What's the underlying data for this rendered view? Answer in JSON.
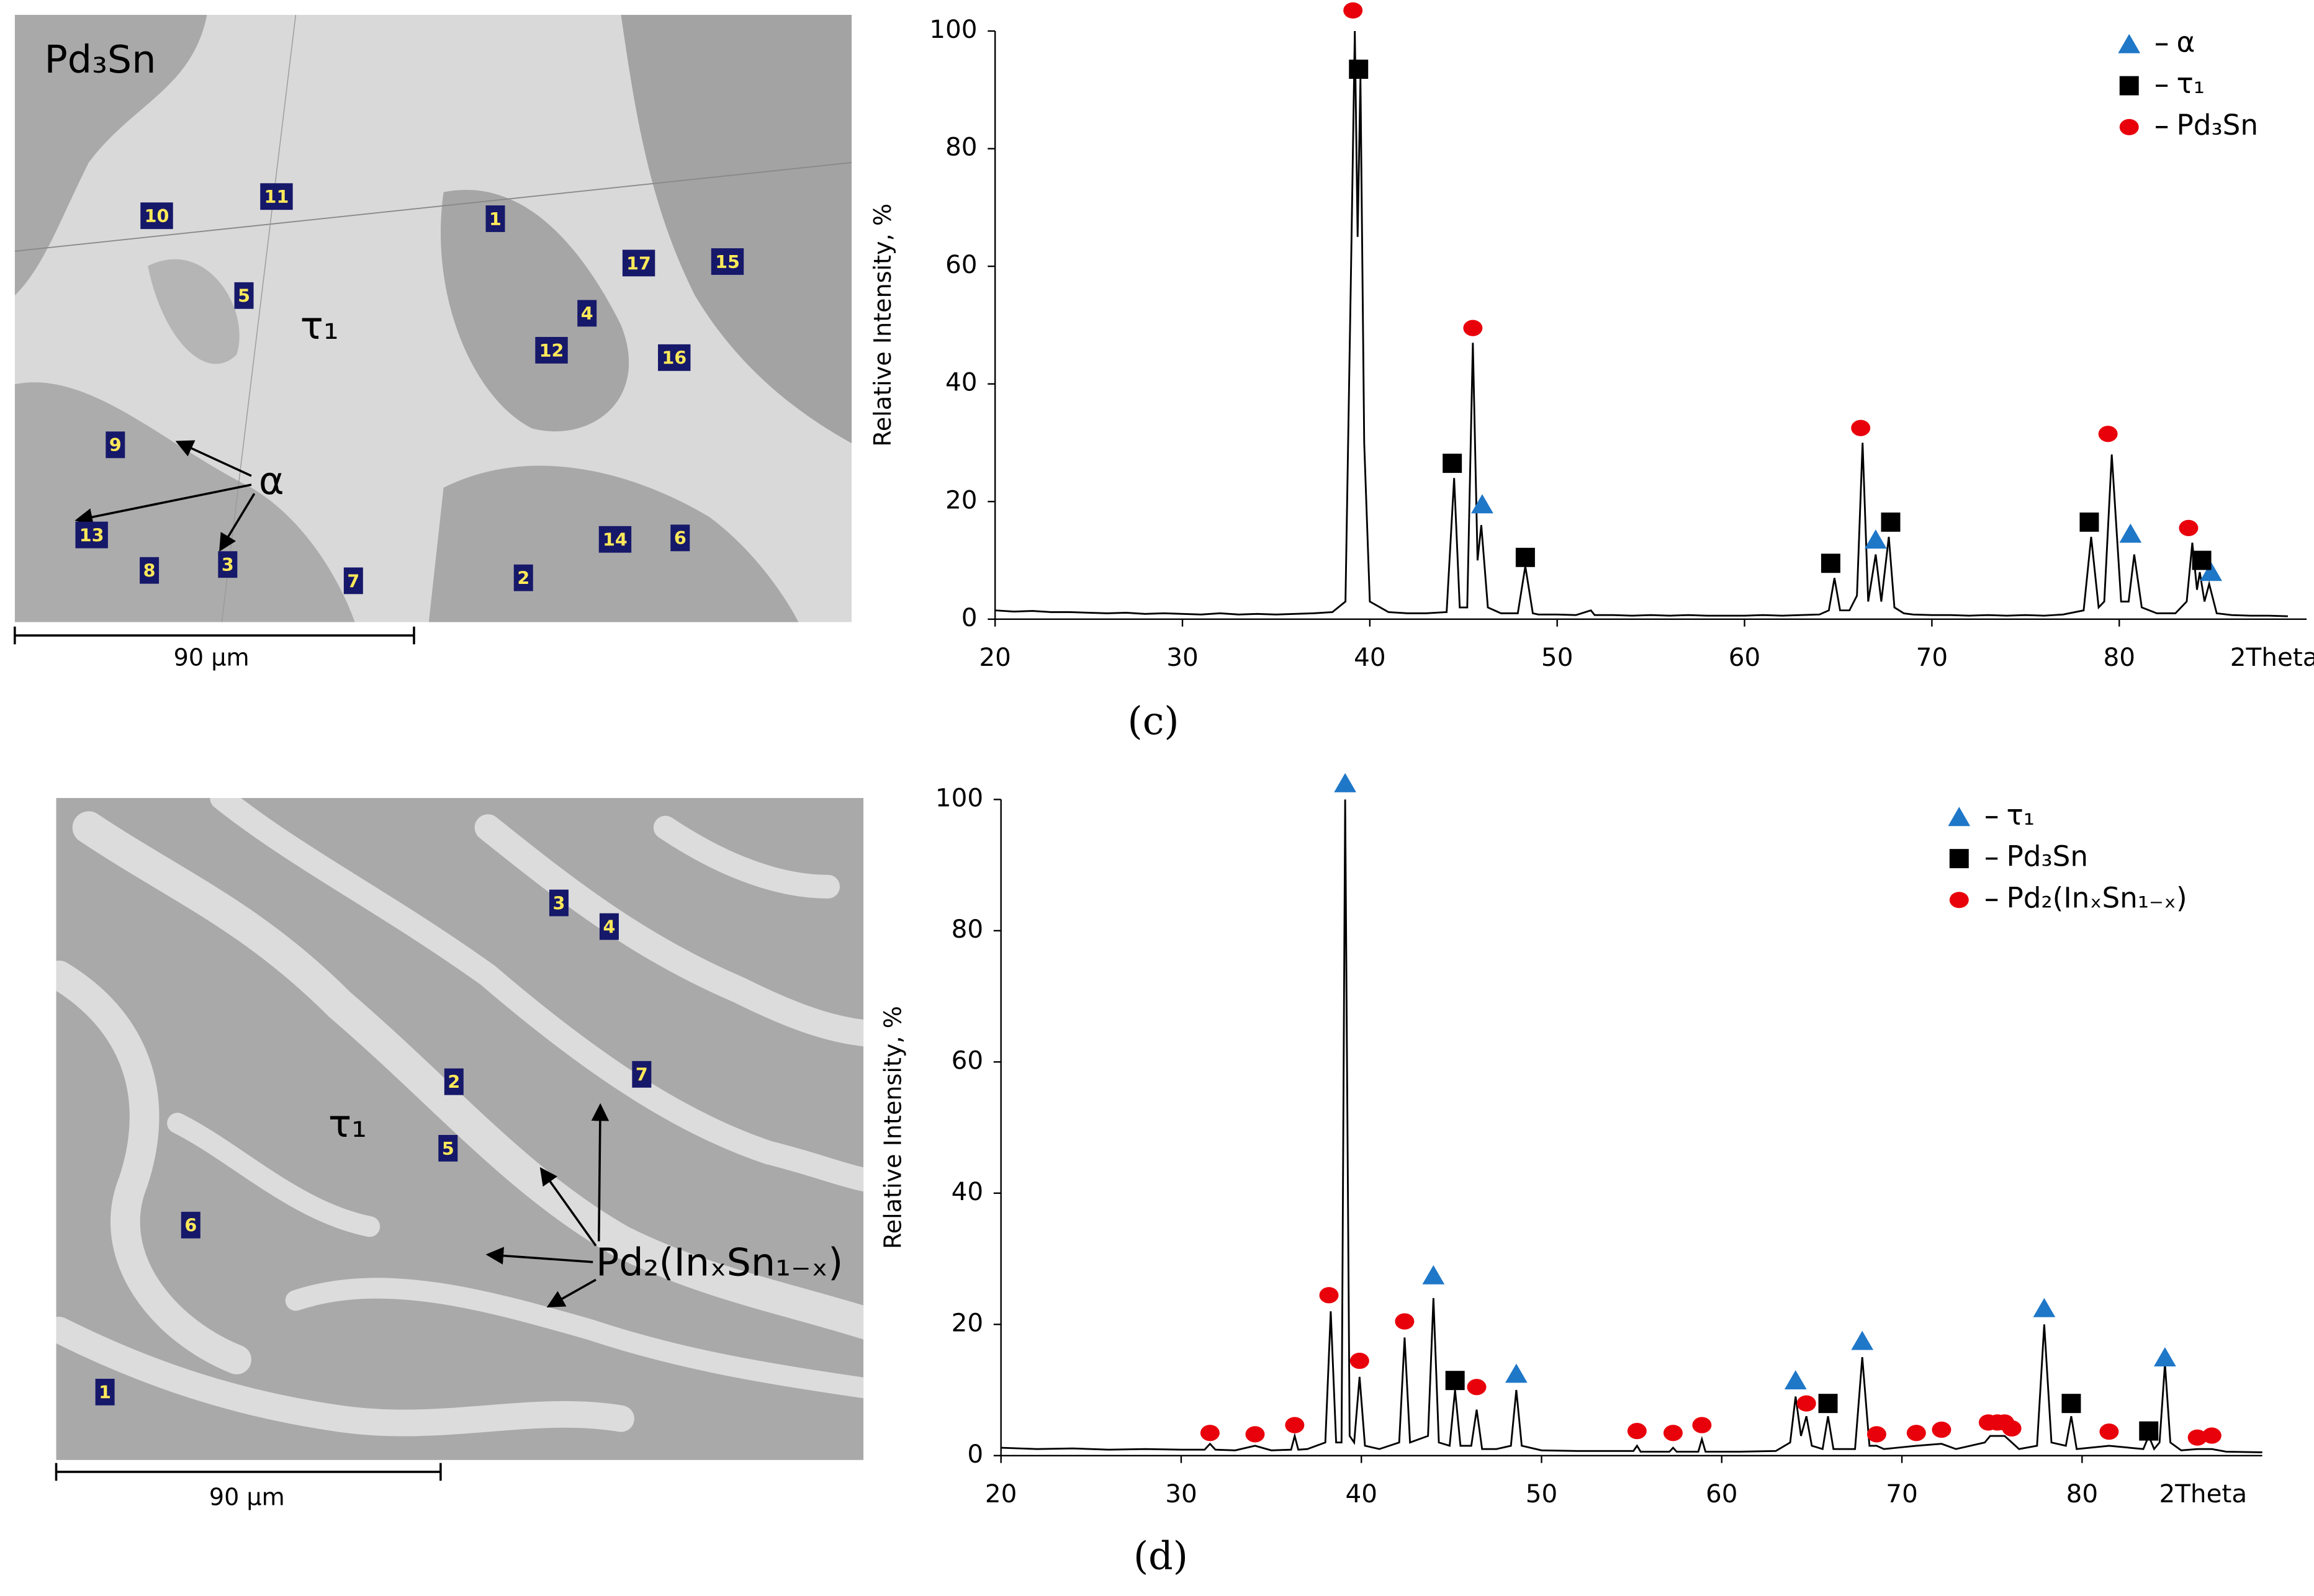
{
  "micrographs": [
    {
      "label": "Pd₃Sn",
      "phase_labels": [
        "τ₁",
        "α"
      ],
      "points": [
        "10",
        "11",
        "1",
        "5",
        "17",
        "15",
        "4",
        "12",
        "16",
        "9",
        "13",
        "3",
        "8",
        "7",
        "2",
        "14",
        "6"
      ],
      "scale_bar": "90 µm"
    },
    {
      "phase_labels": [
        "τ₁",
        "Pd₂(InₓSn₁₋ₓ)"
      ],
      "points": [
        "3",
        "4",
        "7",
        "2",
        "5",
        "6",
        "1"
      ],
      "scale_bar": "90 µm"
    }
  ],
  "chart_data": [
    {
      "type": "line",
      "panel_label": "(c)",
      "y_label": "Relative Intensity, %",
      "x_label": "2Theta",
      "xlim": [
        20,
        90
      ],
      "xticks": [
        20,
        30,
        40,
        50,
        60,
        70,
        80
      ],
      "ylim": [
        0,
        100
      ],
      "yticks": [
        0,
        20,
        40,
        60,
        80,
        100
      ],
      "legend": "upper right",
      "series": [
        {
          "color": "#000000",
          "x": [
            20,
            21,
            22,
            23,
            24,
            25,
            26,
            27,
            28,
            29,
            30,
            31,
            32,
            33,
            34,
            35,
            36,
            37,
            38,
            38.7,
            39.0,
            39.2,
            39.35,
            39.5,
            39.7,
            40.0,
            41,
            42,
            43,
            44.1,
            44.5,
            44.8,
            45.2,
            45.5,
            45.75,
            45.95,
            46.3,
            47,
            47.9,
            48.3,
            48.7,
            49,
            50,
            51,
            51.8,
            52,
            53,
            54,
            55,
            56,
            57,
            58,
            59,
            60,
            61,
            62,
            63,
            64,
            64.5,
            64.8,
            65.1,
            65.6,
            66.0,
            66.3,
            66.6,
            67.0,
            67.3,
            67.7,
            68.0,
            68.5,
            69,
            70,
            71,
            72,
            73,
            74,
            75,
            76,
            77,
            78.1,
            78.5,
            78.9,
            79.2,
            79.6,
            80.1,
            80.5,
            80.8,
            81.2,
            82,
            83,
            83.6,
            83.9,
            84.15,
            84.3,
            84.55,
            84.8,
            85.2,
            86,
            87,
            88,
            89
          ],
          "values": [
            1.5,
            1.3,
            1.4,
            1.2,
            1.2,
            1.1,
            1.0,
            1.1,
            0.9,
            1.0,
            0.9,
            0.8,
            1.0,
            0.8,
            0.9,
            0.8,
            0.9,
            1.0,
            1.2,
            3,
            60,
            100,
            65,
            92,
            30,
            3,
            1.2,
            1.0,
            1.0,
            1.2,
            24,
            2,
            2,
            47,
            10,
            16,
            2,
            1,
            1,
            9,
            1,
            0.8,
            0.8,
            0.7,
            1.5,
            0.7,
            0.7,
            0.6,
            0.7,
            0.6,
            0.7,
            0.6,
            0.6,
            0.6,
            0.7,
            0.6,
            0.7,
            0.8,
            1.5,
            7,
            1.5,
            1.5,
            4,
            30,
            3,
            11,
            3,
            14,
            2,
            1,
            0.8,
            0.7,
            0.7,
            0.6,
            0.7,
            0.6,
            0.7,
            0.6,
            0.8,
            1.5,
            14,
            2,
            3,
            28,
            3,
            3,
            11,
            2,
            1,
            1,
            3,
            13,
            5,
            8,
            3,
            6,
            1,
            0.7,
            0.6,
            0.6,
            0.5
          ]
        },
        {
          "type": "scatter",
          "name": "α",
          "color": "#1f77c8",
          "marker": "triangle",
          "x": [
            46.0,
            67.0,
            80.6,
            84.9
          ],
          "values": [
            19,
            13,
            14,
            7.5
          ]
        },
        {
          "type": "scatter",
          "name": "τ₁",
          "color": "#000000",
          "marker": "square",
          "x": [
            39.4,
            44.4,
            48.3,
            64.6,
            67.8,
            78.4,
            84.4
          ],
          "values": [
            93,
            26,
            10,
            9,
            16,
            16,
            9.5
          ]
        },
        {
          "type": "scatter",
          "name": "Pd₃Sn",
          "color": "#e8000b",
          "marker": "circle",
          "x": [
            39.1,
            45.5,
            66.2,
            79.4,
            83.7
          ],
          "values": [
            103,
            49,
            32,
            31,
            15
          ]
        }
      ]
    },
    {
      "type": "line",
      "panel_label": "(d)",
      "y_label": "Relative Intensity, %",
      "x_label": "2Theta",
      "xlim": [
        20,
        90
      ],
      "xticks": [
        20,
        30,
        40,
        50,
        60,
        70,
        80
      ],
      "ylim": [
        0,
        100
      ],
      "yticks": [
        0,
        20,
        40,
        60,
        80,
        100
      ],
      "legend": "upper right",
      "series": [
        {
          "color": "#000000",
          "x": [
            20,
            22,
            24,
            26,
            28,
            30,
            31.3,
            31.6,
            31.9,
            33,
            34.1,
            35,
            36.1,
            36.3,
            36.5,
            37,
            38.0,
            38.3,
            38.6,
            38.9,
            39.1,
            39.35,
            39.6,
            39.9,
            40.2,
            41,
            42.1,
            42.4,
            42.7,
            43.7,
            44.0,
            44.3,
            44.9,
            45.2,
            45.5,
            46.1,
            46.4,
            46.7,
            47.5,
            48.3,
            48.6,
            48.9,
            50,
            52,
            54,
            55.1,
            55.3,
            55.5,
            57.1,
            57.3,
            57.5,
            58.7,
            58.9,
            59.1,
            61,
            63,
            63.8,
            64.1,
            64.4,
            64.7,
            65.0,
            65.6,
            65.9,
            66.2,
            67.4,
            67.8,
            68.2,
            68.6,
            69,
            70.8,
            72.2,
            73,
            74.6,
            74.9,
            75.3,
            75.7,
            76.1,
            76.5,
            77.5,
            77.9,
            78.3,
            79.1,
            79.4,
            79.7,
            81.5,
            83.4,
            83.7,
            84.0,
            84.3,
            84.6,
            84.9,
            85.5,
            86.4,
            87.2,
            88,
            90
          ],
          "values": [
            1.2,
            1.0,
            1.1,
            0.9,
            1.0,
            0.9,
            0.9,
            1.8,
            0.9,
            0.8,
            1.5,
            0.8,
            0.9,
            3,
            0.9,
            1,
            2,
            22,
            2,
            2,
            100,
            3,
            2,
            12,
            1.5,
            1,
            2,
            18,
            2,
            3,
            24,
            2,
            1.5,
            10,
            1.5,
            1.5,
            7,
            1,
            1,
            1.5,
            10,
            1.5,
            0.8,
            0.7,
            0.7,
            0.7,
            1.5,
            0.6,
            0.6,
            1.2,
            0.6,
            0.6,
            2.5,
            0.6,
            0.6,
            0.7,
            2,
            9,
            3,
            6,
            1.5,
            1,
            6,
            1,
            1,
            15,
            1.5,
            1.5,
            1,
            1.5,
            1.8,
            1,
            2,
            3,
            3,
            3,
            2,
            1,
            1.5,
            20,
            2,
            1.5,
            6,
            1,
            1.5,
            1,
            3,
            1,
            2,
            14,
            2,
            0.8,
            1,
            1,
            0.6,
            0.5
          ]
        },
        {
          "type": "scatter",
          "name": "τ₁",
          "color": "#1f77c8",
          "marker": "triangle",
          "x": [
            39.1,
            44.0,
            48.6,
            64.1,
            67.8,
            77.9,
            84.6
          ],
          "values": [
            102,
            27,
            12,
            11,
            17,
            22,
            14.5
          ]
        },
        {
          "type": "scatter",
          "name": "Pd₃Sn",
          "color": "#000000",
          "marker": "square",
          "x": [
            45.2,
            65.9,
            79.4,
            83.7
          ],
          "values": [
            11,
            7.5,
            7.5,
            3.3
          ]
        },
        {
          "type": "scatter",
          "name": "Pd₂(InₓSn₁₋ₓ)",
          "color": "#e8000b",
          "marker": "circle",
          "x": [
            31.6,
            34.1,
            36.3,
            38.2,
            39.9,
            42.4,
            46.4,
            55.3,
            57.3,
            58.9,
            64.7,
            68.6,
            70.8,
            72.2,
            74.8,
            75.3,
            75.7,
            76.1,
            81.5,
            86.4,
            87.2
          ],
          "values": [
            3,
            2.8,
            4.2,
            24,
            14,
            20,
            10,
            3.3,
            3,
            4.2,
            7.5,
            2.8,
            3,
            3.5,
            4.6,
            4.6,
            4.6,
            3.7,
            3.2,
            2.3,
            2.6
          ]
        }
      ]
    }
  ]
}
